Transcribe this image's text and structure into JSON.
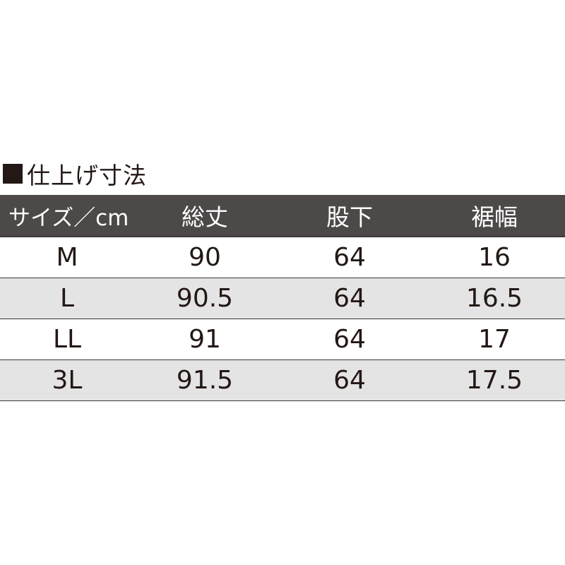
{
  "title": "仕上げ寸法",
  "icon": "black-square-icon",
  "colors": {
    "header_bg": "#4c4948",
    "alt_row_bg": "#e4e4e4",
    "text": "#231815"
  },
  "headers": [
    "サイズ／cm",
    "総丈",
    "股下",
    "裾幅"
  ],
  "rows": [
    [
      "M",
      "90",
      "64",
      "16"
    ],
    [
      "L",
      "90.5",
      "64",
      "16.5"
    ],
    [
      "LL",
      "91",
      "64",
      "17"
    ],
    [
      "3L",
      "91.5",
      "64",
      "17.5"
    ]
  ]
}
